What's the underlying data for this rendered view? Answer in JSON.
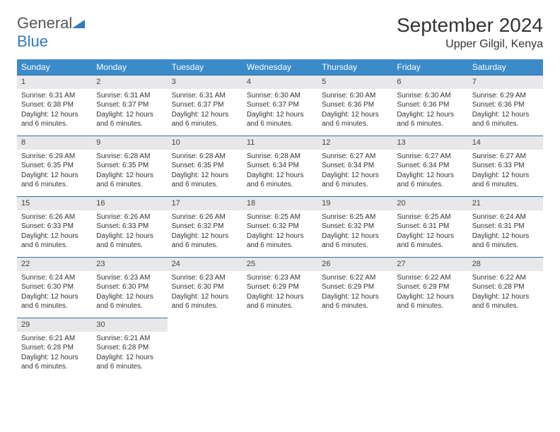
{
  "brand": {
    "part1": "General",
    "part2": "Blue"
  },
  "colors": {
    "header_bg": "#3b8bc9",
    "daynum_bg": "#e8e8ea",
    "row_border": "#2f6fa8",
    "brand_gray": "#555555",
    "brand_blue": "#2f7bbf",
    "text": "#333333",
    "background": "#ffffff"
  },
  "title": "September 2024",
  "location": "Upper Gilgil, Kenya",
  "weekdays": [
    "Sunday",
    "Monday",
    "Tuesday",
    "Wednesday",
    "Thursday",
    "Friday",
    "Saturday"
  ],
  "daylight_label": "Daylight: 12 hours and 6 minutes.",
  "weeks": [
    [
      {
        "n": "1",
        "sr": "Sunrise: 6:31 AM",
        "ss": "Sunset: 6:38 PM"
      },
      {
        "n": "2",
        "sr": "Sunrise: 6:31 AM",
        "ss": "Sunset: 6:37 PM"
      },
      {
        "n": "3",
        "sr": "Sunrise: 6:31 AM",
        "ss": "Sunset: 6:37 PM"
      },
      {
        "n": "4",
        "sr": "Sunrise: 6:30 AM",
        "ss": "Sunset: 6:37 PM"
      },
      {
        "n": "5",
        "sr": "Sunrise: 6:30 AM",
        "ss": "Sunset: 6:36 PM"
      },
      {
        "n": "6",
        "sr": "Sunrise: 6:30 AM",
        "ss": "Sunset: 6:36 PM"
      },
      {
        "n": "7",
        "sr": "Sunrise: 6:29 AM",
        "ss": "Sunset: 6:36 PM"
      }
    ],
    [
      {
        "n": "8",
        "sr": "Sunrise: 6:29 AM",
        "ss": "Sunset: 6:35 PM"
      },
      {
        "n": "9",
        "sr": "Sunrise: 6:28 AM",
        "ss": "Sunset: 6:35 PM"
      },
      {
        "n": "10",
        "sr": "Sunrise: 6:28 AM",
        "ss": "Sunset: 6:35 PM"
      },
      {
        "n": "11",
        "sr": "Sunrise: 6:28 AM",
        "ss": "Sunset: 6:34 PM"
      },
      {
        "n": "12",
        "sr": "Sunrise: 6:27 AM",
        "ss": "Sunset: 6:34 PM"
      },
      {
        "n": "13",
        "sr": "Sunrise: 6:27 AM",
        "ss": "Sunset: 6:34 PM"
      },
      {
        "n": "14",
        "sr": "Sunrise: 6:27 AM",
        "ss": "Sunset: 6:33 PM"
      }
    ],
    [
      {
        "n": "15",
        "sr": "Sunrise: 6:26 AM",
        "ss": "Sunset: 6:33 PM"
      },
      {
        "n": "16",
        "sr": "Sunrise: 6:26 AM",
        "ss": "Sunset: 6:33 PM"
      },
      {
        "n": "17",
        "sr": "Sunrise: 6:26 AM",
        "ss": "Sunset: 6:32 PM"
      },
      {
        "n": "18",
        "sr": "Sunrise: 6:25 AM",
        "ss": "Sunset: 6:32 PM"
      },
      {
        "n": "19",
        "sr": "Sunrise: 6:25 AM",
        "ss": "Sunset: 6:32 PM"
      },
      {
        "n": "20",
        "sr": "Sunrise: 6:25 AM",
        "ss": "Sunset: 6:31 PM"
      },
      {
        "n": "21",
        "sr": "Sunrise: 6:24 AM",
        "ss": "Sunset: 6:31 PM"
      }
    ],
    [
      {
        "n": "22",
        "sr": "Sunrise: 6:24 AM",
        "ss": "Sunset: 6:30 PM"
      },
      {
        "n": "23",
        "sr": "Sunrise: 6:23 AM",
        "ss": "Sunset: 6:30 PM"
      },
      {
        "n": "24",
        "sr": "Sunrise: 6:23 AM",
        "ss": "Sunset: 6:30 PM"
      },
      {
        "n": "25",
        "sr": "Sunrise: 6:23 AM",
        "ss": "Sunset: 6:29 PM"
      },
      {
        "n": "26",
        "sr": "Sunrise: 6:22 AM",
        "ss": "Sunset: 6:29 PM"
      },
      {
        "n": "27",
        "sr": "Sunrise: 6:22 AM",
        "ss": "Sunset: 6:29 PM"
      },
      {
        "n": "28",
        "sr": "Sunrise: 6:22 AM",
        "ss": "Sunset: 6:28 PM"
      }
    ],
    [
      {
        "n": "29",
        "sr": "Sunrise: 6:21 AM",
        "ss": "Sunset: 6:28 PM"
      },
      {
        "n": "30",
        "sr": "Sunrise: 6:21 AM",
        "ss": "Sunset: 6:28 PM"
      },
      null,
      null,
      null,
      null,
      null
    ]
  ]
}
